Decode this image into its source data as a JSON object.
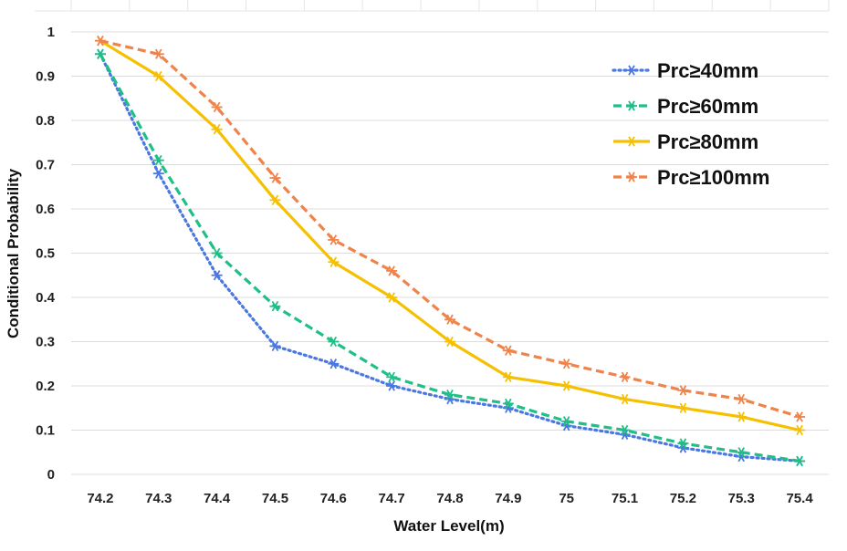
{
  "chart_data": {
    "type": "line",
    "xlabel": "Water Level(m)",
    "ylabel": "Conditional Probability",
    "categories": [
      "74.2",
      "74.3",
      "74.4",
      "74.5",
      "74.6",
      "74.7",
      "74.8",
      "74.9",
      "75",
      "75.1",
      "75.2",
      "75.3",
      "75.4"
    ],
    "y_ticks": [
      "0",
      "0.1",
      "0.2",
      "0.3",
      "0.4",
      "0.5",
      "0.6",
      "0.7",
      "0.8",
      "0.9",
      "1"
    ],
    "ylim": [
      0,
      1
    ],
    "grid": true,
    "legend_position": "top-right",
    "series": [
      {
        "name": "Prc≥40mm",
        "color": "#4a78e3",
        "style": "dotted",
        "values": [
          0.95,
          0.68,
          0.45,
          0.29,
          0.25,
          0.2,
          0.17,
          0.15,
          0.11,
          0.09,
          0.06,
          0.04,
          0.03
        ]
      },
      {
        "name": "Prc≥60mm",
        "color": "#1fbf86",
        "style": "dashed",
        "values": [
          0.95,
          0.71,
          0.5,
          0.38,
          0.3,
          0.22,
          0.18,
          0.16,
          0.12,
          0.1,
          0.07,
          0.05,
          0.03
        ]
      },
      {
        "name": "Prc≥80mm",
        "color": "#f5c000",
        "style": "solid",
        "values": [
          0.98,
          0.9,
          0.78,
          0.62,
          0.48,
          0.4,
          0.3,
          0.22,
          0.2,
          0.17,
          0.15,
          0.13,
          0.1
        ]
      },
      {
        "name": "Prc≥100mm",
        "color": "#f0834a",
        "style": "dashed",
        "values": [
          0.98,
          0.95,
          0.83,
          0.67,
          0.53,
          0.46,
          0.35,
          0.28,
          0.25,
          0.22,
          0.19,
          0.17,
          0.13
        ]
      }
    ]
  }
}
